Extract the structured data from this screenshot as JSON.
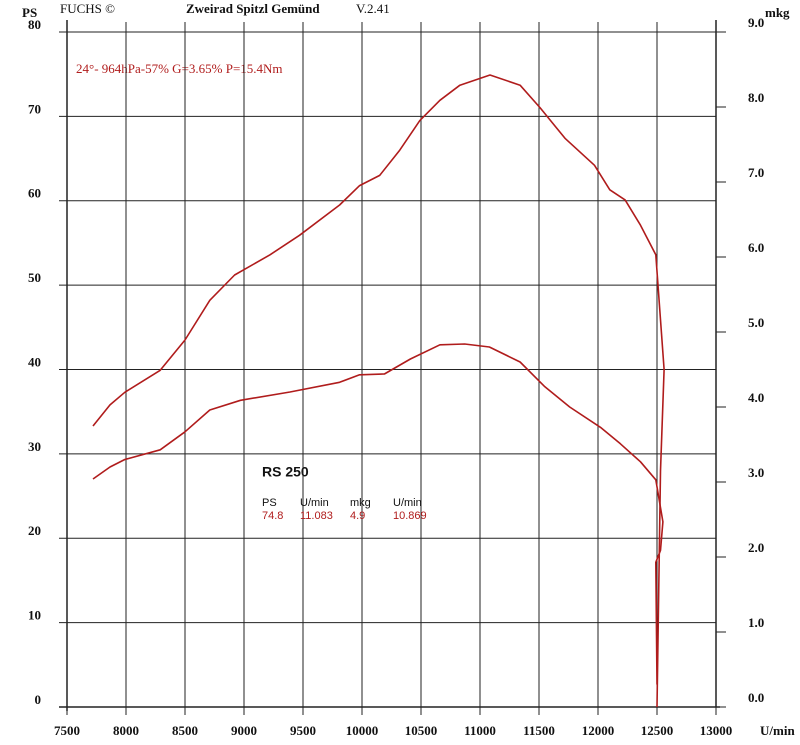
{
  "chart_data": {
    "type": "line",
    "header": {
      "left_axis_unit": "PS",
      "brand": "FUCHS ©",
      "company": "Zweirad Spitzl Gemünd",
      "version": "V.2.41",
      "right_axis_unit": "mkg"
    },
    "annotation": "24°- 964hPa-57% G=3.65% P=15.4Nm",
    "xlabel": "U/min",
    "summary": {
      "title": "RS 250",
      "headers": [
        "PS",
        "U/min",
        "mkg",
        "U/min"
      ],
      "values": [
        "74.8",
        "11.083",
        "4.9",
        "10.869"
      ]
    },
    "xlim": [
      7500,
      13000
    ],
    "xticks": [
      7500,
      8000,
      8500,
      9000,
      9500,
      10000,
      10500,
      11000,
      11500,
      12000,
      12500,
      13000
    ],
    "ylim": [
      0,
      80
    ],
    "yticks": [
      0,
      10,
      20,
      30,
      40,
      50,
      60,
      70,
      80
    ],
    "y2lim": [
      0,
      9
    ],
    "y2ticks": [
      {
        "value": 0,
        "label": "0.0"
      },
      {
        "value": 1,
        "label": "1.0"
      },
      {
        "value": 2,
        "label": "2.0"
      },
      {
        "value": 3,
        "label": "3.0"
      },
      {
        "value": 4,
        "label": "4.0"
      },
      {
        "value": 5,
        "label": "5.0"
      },
      {
        "value": 6,
        "label": "6.0"
      },
      {
        "value": 7,
        "label": "7.0"
      },
      {
        "value": 8,
        "label": "8.0"
      },
      {
        "value": 9,
        "label": "9.0"
      }
    ],
    "grid": true,
    "series": [
      {
        "color": "#b01c1c",
        "x": [
          7720,
          7864,
          7990,
          8290,
          8500,
          8710,
          8920,
          9220,
          9470,
          9810,
          9980,
          10150,
          10320,
          10490,
          10660,
          10830,
          11085,
          11340,
          11510,
          11720,
          11970,
          12100,
          12230,
          12360,
          12490,
          12560,
          12530,
          12500
        ],
        "values": [
          33.3,
          35.8,
          37.3,
          39.9,
          43.5,
          48.2,
          51.2,
          53.6,
          55.9,
          59.5,
          61.8,
          63.0,
          66.0,
          69.5,
          71.9,
          73.7,
          74.9,
          73.7,
          71.0,
          67.4,
          64.2,
          61.3,
          60.1,
          57.1,
          53.6,
          40,
          28,
          0
        ]
      },
      {
        "color": "#b01c1c",
        "axis": "y2",
        "x": [
          7720,
          7864,
          7990,
          8290,
          8500,
          8710,
          8970,
          9390,
          9810,
          9980,
          10190,
          10410,
          10660,
          10870,
          11080,
          11340,
          11550,
          11760,
          12020,
          12190,
          12360,
          12490,
          12550,
          12530,
          12490,
          12500
        ],
        "values": [
          3.04,
          3.2,
          3.3,
          3.43,
          3.67,
          3.96,
          4.09,
          4.2,
          4.33,
          4.43,
          4.44,
          4.64,
          4.83,
          4.84,
          4.8,
          4.6,
          4.27,
          4.0,
          3.73,
          3.51,
          3.27,
          3.03,
          2.47,
          2.09,
          1.93,
          0.3
        ]
      }
    ]
  }
}
